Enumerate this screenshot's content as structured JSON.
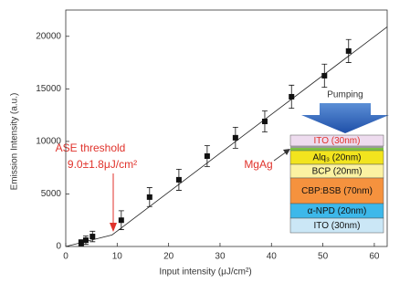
{
  "chart_data": {
    "type": "scatter",
    "xlabel": "Input intensity (μJ/cm²)",
    "ylabel": "Emission Intensity (a.u.)",
    "x": [
      3,
      3.9,
      5.2,
      10.8,
      16.3,
      22,
      27.5,
      33,
      38.7,
      43.9,
      50.3,
      55
    ],
    "values": [
      350,
      600,
      950,
      2500,
      4700,
      6350,
      8600,
      10350,
      11900,
      14250,
      16250,
      18600
    ],
    "errors": [
      300,
      400,
      500,
      900,
      900,
      1000,
      1000,
      1000,
      1000,
      1100,
      1100,
      1100
    ],
    "fit": {
      "x": [
        0,
        9,
        62.5
      ],
      "values": [
        0,
        1100,
        20900
      ]
    },
    "color": "#111111",
    "xlim": [
      0,
      62.5
    ],
    "ylim": [
      0,
      22500
    ],
    "xticks": [
      0,
      10,
      20,
      30,
      40,
      50,
      60
    ],
    "yticks": [
      0,
      5000,
      10000,
      15000,
      20000
    ],
    "grid": false,
    "annotations": {
      "threshold_title": "ASE threshold",
      "threshold_value": "9.0±1.8μJ/cm²",
      "mgag": "MgAg",
      "pumping": "Pumping",
      "color": "#e0322b"
    },
    "device_layers": [
      {
        "label": "ITO (30nm)",
        "color": "#eedcef",
        "text_color": "#e0322b"
      },
      {
        "label": "Alq₃ (20nm)",
        "color": "#f2e41e",
        "text_color": "#111111"
      },
      {
        "label": "BCP (20nm)",
        "color": "#fbf2a2",
        "text_color": "#111111"
      },
      {
        "label": "CBP:BSB (70nm)",
        "color": "#f5923e",
        "text_color": "#111111"
      },
      {
        "label": "α-NPD (20nm)",
        "color": "#3db8ea",
        "text_color": "#111111"
      },
      {
        "label": "ITO (30nm)",
        "color": "#cbe7f6",
        "text_color": "#111111"
      }
    ]
  }
}
